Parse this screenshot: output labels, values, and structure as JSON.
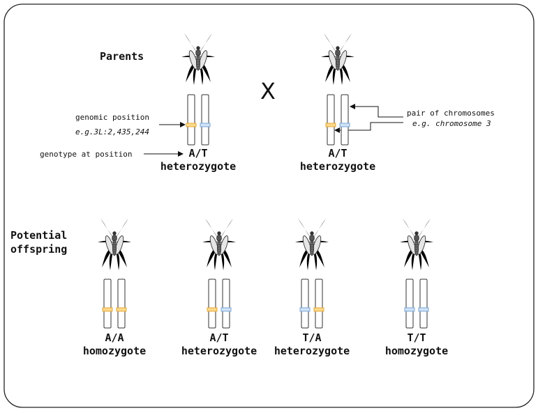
{
  "colors": {
    "allele_A": "#fbd98a",
    "allele_A_stroke": "#e5a93a",
    "allele_T": "#cfe2f7",
    "allele_T_stroke": "#7aa6d6",
    "frame": "#222222"
  },
  "labels": {
    "parents": "Parents",
    "cross": "X",
    "potential_line1": "Potential",
    "potential_line2": "offspring",
    "genomic_position": "genomic position",
    "genomic_example": "e.g.3L:2,435,244",
    "genotype_at_position": "genotype at position",
    "pair_of_chromosomes": "pair of chromosomes",
    "chromosome_example": "e.g. chromosome 3"
  },
  "parents": [
    {
      "genotype": "A/T",
      "zygosity": "heterozygote",
      "alleles": [
        "A",
        "T"
      ]
    },
    {
      "genotype": "A/T",
      "zygosity": "heterozygote",
      "alleles": [
        "A",
        "T"
      ]
    }
  ],
  "offspring": [
    {
      "genotype": "A/A",
      "zygosity": "homozygote",
      "alleles": [
        "A",
        "A"
      ]
    },
    {
      "genotype": "A/T",
      "zygosity": "heterozygote",
      "alleles": [
        "A",
        "T"
      ]
    },
    {
      "genotype": "T/A",
      "zygosity": "heterozygote",
      "alleles": [
        "T",
        "A"
      ]
    },
    {
      "genotype": "T/T",
      "zygosity": "homozygote",
      "alleles": [
        "T",
        "T"
      ]
    }
  ],
  "icons": {
    "mosquito": "mosquito-icon"
  }
}
